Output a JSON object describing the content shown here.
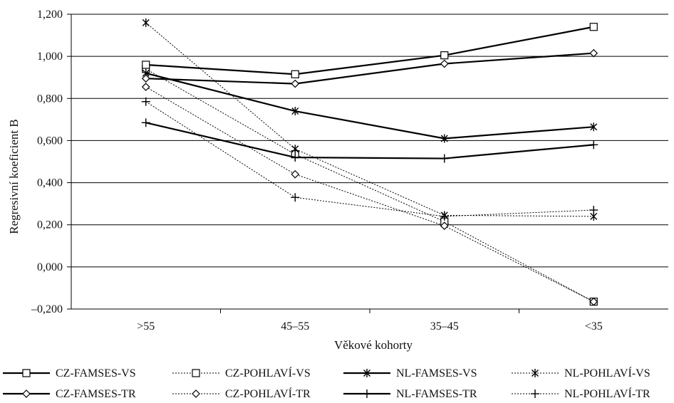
{
  "chart_data": {
    "type": "line",
    "title": "",
    "xlabel": "Věkové kohorty",
    "ylabel": "Regresivní koeficient B",
    "categories": [
      ">55",
      "45–55",
      "35–45",
      "<35"
    ],
    "ylim": [
      -0.2,
      1.2
    ],
    "yticks": [
      -0.2,
      0.0,
      0.2,
      0.4,
      0.6,
      0.8,
      1.0,
      1.2
    ],
    "ytick_labels": [
      "–0,200",
      "0,000",
      "0,200",
      "0,400",
      "0,600",
      "0,800",
      "1,000",
      "1,200"
    ],
    "grid": "horizontal",
    "legend_position": "bottom",
    "series": [
      {
        "name": "CZ-FAMSES-VS",
        "marker": "square",
        "style": "solid",
        "values": [
          0.96,
          0.915,
          1.005,
          1.14
        ]
      },
      {
        "name": "CZ-POHLAVÍ-VS",
        "marker": "square",
        "style": "dotted",
        "values": [
          0.94,
          0.535,
          0.215,
          -0.165
        ]
      },
      {
        "name": "NL-FAMSES-VS",
        "marker": "star",
        "style": "solid",
        "values": [
          0.92,
          0.74,
          0.61,
          0.665
        ]
      },
      {
        "name": "NL-POHLAVÍ-VS",
        "marker": "star",
        "style": "dotted",
        "values": [
          1.16,
          0.56,
          0.245,
          0.24
        ]
      },
      {
        "name": "CZ-FAMSES-TR",
        "marker": "diamond",
        "style": "solid",
        "values": [
          0.895,
          0.87,
          0.965,
          1.015
        ]
      },
      {
        "name": "CZ-POHLAVÍ-TR",
        "marker": "diamond",
        "style": "dotted",
        "values": [
          0.855,
          0.44,
          0.195,
          -0.165
        ]
      },
      {
        "name": "NL-FAMSES-TR",
        "marker": "plus",
        "style": "solid",
        "values": [
          0.685,
          0.52,
          0.515,
          0.58
        ]
      },
      {
        "name": "NL-POHLAVÍ-TR",
        "marker": "plus",
        "style": "dotted",
        "values": [
          0.785,
          0.33,
          0.24,
          0.27
        ]
      }
    ]
  }
}
